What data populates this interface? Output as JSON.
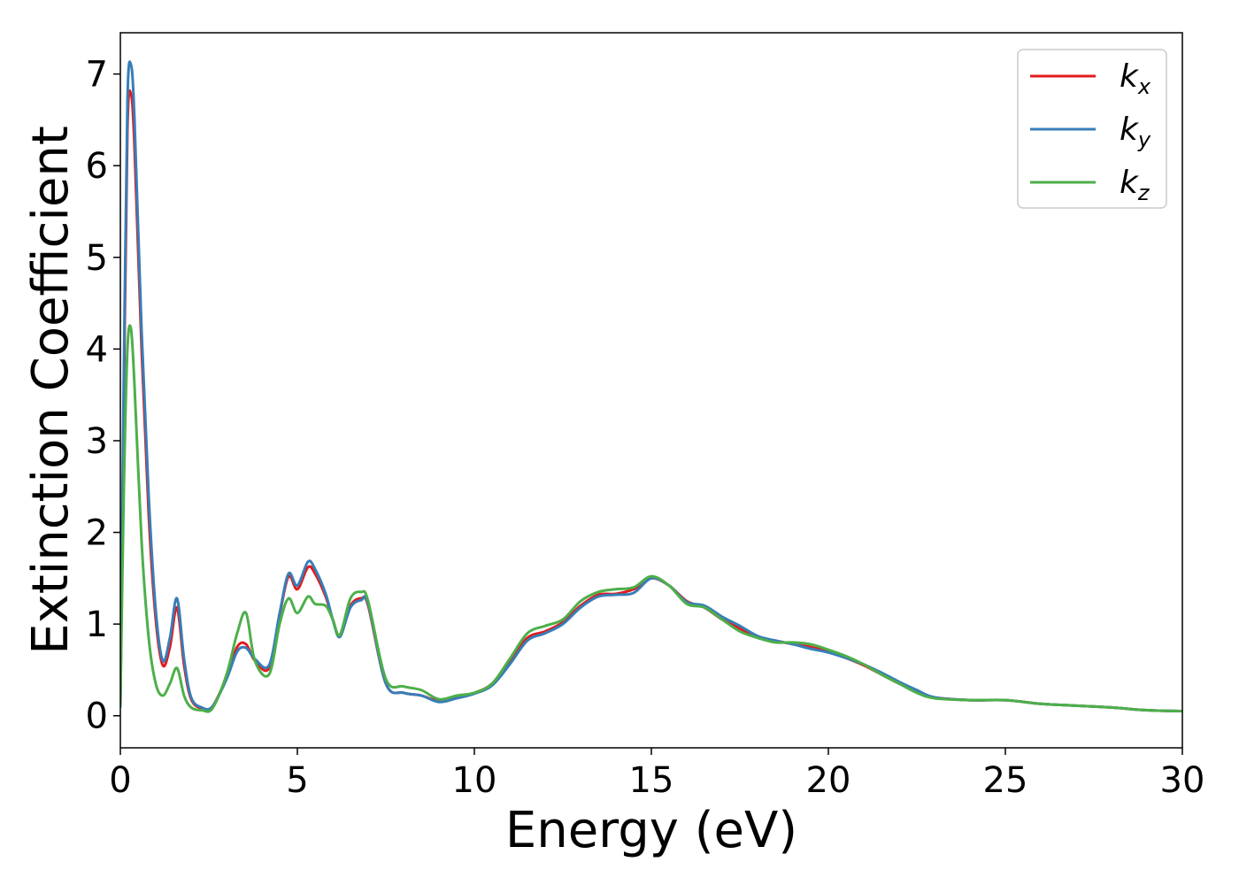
{
  "chart_data": {
    "type": "line",
    "title": "",
    "xlabel": "Energy (eV)",
    "ylabel": "Extinction Coefficient",
    "xlim": [
      0,
      30
    ],
    "ylim": [
      -0.35,
      7.45
    ],
    "xticks": [
      0,
      5,
      10,
      15,
      20,
      25,
      30
    ],
    "yticks": [
      0,
      1,
      2,
      3,
      4,
      5,
      6,
      7
    ],
    "grid": false,
    "legend_position": "top-right",
    "series": [
      {
        "name": "k",
        "subscript": "x",
        "color": "#e41a1c",
        "x": [
          0,
          0.1,
          0.2,
          0.3,
          0.4,
          0.6,
          0.8,
          1.0,
          1.2,
          1.4,
          1.6,
          1.8,
          2.0,
          2.3,
          2.6,
          3.0,
          3.3,
          3.55,
          3.8,
          4.2,
          4.5,
          4.75,
          5.0,
          5.3,
          5.5,
          5.8,
          6.0,
          6.2,
          6.5,
          6.8,
          7.0,
          7.5,
          8.0,
          8.5,
          9.0,
          9.5,
          10.0,
          10.5,
          11.0,
          11.5,
          12.0,
          12.5,
          13.0,
          13.5,
          14.0,
          14.5,
          15.0,
          15.5,
          16.0,
          16.5,
          17.0,
          17.5,
          18.0,
          18.5,
          19.0,
          19.5,
          20.0,
          20.5,
          21.0,
          21.5,
          22.0,
          22.5,
          23.0,
          24.0,
          25.0,
          26.0,
          27.0,
          28.0,
          29.0,
          30.0
        ],
        "y": [
          0.1,
          3.5,
          6.4,
          6.78,
          6.2,
          4.0,
          2.2,
          1.05,
          0.55,
          0.75,
          1.18,
          0.55,
          0.18,
          0.08,
          0.1,
          0.42,
          0.75,
          0.78,
          0.6,
          0.52,
          1.1,
          1.52,
          1.38,
          1.62,
          1.55,
          1.3,
          1.05,
          0.88,
          1.2,
          1.28,
          1.2,
          0.35,
          0.25,
          0.22,
          0.16,
          0.2,
          0.25,
          0.35,
          0.6,
          0.85,
          0.92,
          1.02,
          1.2,
          1.32,
          1.33,
          1.38,
          1.5,
          1.42,
          1.25,
          1.18,
          1.05,
          0.95,
          0.85,
          0.82,
          0.78,
          0.75,
          0.7,
          0.63,
          0.55,
          0.45,
          0.35,
          0.27,
          0.2,
          0.17,
          0.17,
          0.13,
          0.11,
          0.09,
          0.06,
          0.05
        ]
      },
      {
        "name": "k",
        "subscript": "y",
        "color": "#377eb8",
        "x": [
          0,
          0.1,
          0.2,
          0.3,
          0.4,
          0.6,
          0.8,
          1.0,
          1.2,
          1.4,
          1.6,
          1.8,
          2.0,
          2.3,
          2.6,
          3.0,
          3.3,
          3.55,
          3.8,
          4.2,
          4.5,
          4.75,
          5.0,
          5.3,
          5.5,
          5.8,
          6.0,
          6.2,
          6.5,
          6.8,
          7.0,
          7.5,
          8.0,
          8.5,
          9.0,
          9.5,
          10.0,
          10.5,
          11.0,
          11.5,
          12.0,
          12.5,
          13.0,
          13.5,
          14.0,
          14.5,
          15.0,
          15.5,
          16.0,
          16.5,
          17.0,
          17.5,
          18.0,
          18.5,
          19.0,
          19.5,
          20.0,
          20.5,
          21.0,
          21.5,
          22.0,
          22.5,
          23.0,
          24.0,
          25.0,
          26.0,
          27.0,
          28.0,
          29.0,
          30.0
        ],
        "y": [
          0.1,
          3.8,
          6.7,
          7.1,
          6.5,
          4.2,
          2.4,
          1.15,
          0.6,
          0.85,
          1.28,
          0.62,
          0.2,
          0.09,
          0.1,
          0.4,
          0.7,
          0.74,
          0.62,
          0.55,
          1.12,
          1.55,
          1.42,
          1.68,
          1.6,
          1.33,
          1.05,
          0.86,
          1.18,
          1.26,
          1.22,
          0.35,
          0.25,
          0.22,
          0.15,
          0.19,
          0.24,
          0.33,
          0.56,
          0.82,
          0.9,
          1.0,
          1.18,
          1.3,
          1.32,
          1.34,
          1.5,
          1.42,
          1.24,
          1.2,
          1.08,
          0.98,
          0.87,
          0.82,
          0.78,
          0.73,
          0.69,
          0.63,
          0.56,
          0.47,
          0.37,
          0.28,
          0.2,
          0.17,
          0.17,
          0.13,
          0.11,
          0.09,
          0.06,
          0.05
        ]
      },
      {
        "name": "k",
        "subscript": "z",
        "color": "#4daf4a",
        "x": [
          0,
          0.1,
          0.2,
          0.3,
          0.4,
          0.6,
          0.8,
          1.0,
          1.2,
          1.4,
          1.6,
          1.8,
          2.0,
          2.3,
          2.6,
          3.0,
          3.3,
          3.55,
          3.8,
          4.2,
          4.5,
          4.75,
          5.0,
          5.3,
          5.5,
          5.8,
          6.0,
          6.2,
          6.5,
          6.8,
          7.0,
          7.5,
          8.0,
          8.5,
          9.0,
          9.5,
          10.0,
          10.5,
          11.0,
          11.5,
          12.0,
          12.5,
          13.0,
          13.5,
          14.0,
          14.5,
          15.0,
          15.5,
          16.0,
          16.5,
          17.0,
          17.5,
          18.0,
          18.5,
          19.0,
          19.5,
          20.0,
          20.5,
          21.0,
          21.5,
          22.0,
          22.5,
          23.0,
          24.0,
          25.0,
          26.0,
          27.0,
          28.0,
          29.0,
          30.0
        ],
        "y": [
          0.1,
          2.5,
          4.0,
          4.22,
          3.6,
          1.9,
          0.85,
          0.35,
          0.22,
          0.35,
          0.52,
          0.22,
          0.09,
          0.06,
          0.08,
          0.45,
          0.9,
          1.12,
          0.6,
          0.45,
          1.0,
          1.28,
          1.12,
          1.3,
          1.22,
          1.2,
          1.05,
          0.88,
          1.28,
          1.35,
          1.25,
          0.4,
          0.32,
          0.28,
          0.18,
          0.22,
          0.25,
          0.35,
          0.62,
          0.9,
          0.98,
          1.05,
          1.25,
          1.35,
          1.38,
          1.4,
          1.52,
          1.42,
          1.22,
          1.18,
          1.05,
          0.92,
          0.85,
          0.8,
          0.8,
          0.78,
          0.72,
          0.65,
          0.56,
          0.45,
          0.35,
          0.25,
          0.19,
          0.17,
          0.17,
          0.13,
          0.11,
          0.09,
          0.06,
          0.05
        ]
      }
    ]
  }
}
